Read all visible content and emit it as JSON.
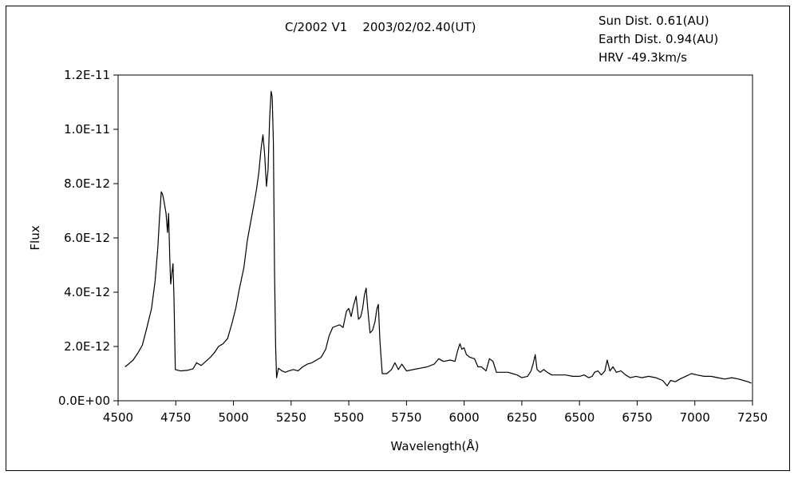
{
  "chart_data": {
    "type": "line",
    "title": "C/2002 V1    2003/02/02.40(UT)",
    "annotations": [
      "Sun Dist. 0.61(AU)",
      "Earth Dist. 0.94(AU)",
      "HRV -49.3km/s"
    ],
    "xlabel": "Wavelength(Å)",
    "ylabel": "Flux",
    "xlim": [
      4500,
      7250
    ],
    "ylim": [
      0,
      1.2e-11
    ],
    "x_ticks": [
      4500,
      4750,
      5000,
      5250,
      5500,
      5750,
      6000,
      6250,
      6500,
      6750,
      7000,
      7250
    ],
    "x_tick_labels": [
      "4500",
      "4750",
      "5000",
      "5250",
      "5500",
      "5750",
      "6000",
      "6250",
      "6500",
      "6750",
      "7000",
      "7250"
    ],
    "y_ticks": [
      0,
      2e-12,
      4e-12,
      6e-12,
      8e-12,
      1e-11,
      1.2e-11
    ],
    "y_tick_labels": [
      "0.0E+00",
      "2.0E-12",
      "4.0E-12",
      "6.0E-12",
      "8.0E-12",
      "1.0E-11",
      "1.2E-11"
    ],
    "grid": false,
    "legend": "none",
    "series": [
      {
        "color": "#000000",
        "points": [
          [
            4530,
            1.25e-12
          ],
          [
            4545,
            1.35e-12
          ],
          [
            4565,
            1.5e-12
          ],
          [
            4585,
            1.75e-12
          ],
          [
            4605,
            2.05e-12
          ],
          [
            4625,
            2.7e-12
          ],
          [
            4645,
            3.4e-12
          ],
          [
            4660,
            4.4e-12
          ],
          [
            4672,
            5.6e-12
          ],
          [
            4680,
            6.8e-12
          ],
          [
            4687,
            7.7e-12
          ],
          [
            4693,
            7.6e-12
          ],
          [
            4700,
            7.3e-12
          ],
          [
            4708,
            6.9e-12
          ],
          [
            4714,
            6.2e-12
          ],
          [
            4719,
            6.9e-12
          ],
          [
            4724,
            5.2e-12
          ],
          [
            4728,
            4.3e-12
          ],
          [
            4733,
            4.7e-12
          ],
          [
            4738,
            5.05e-12
          ],
          [
            4742,
            3.8e-12
          ],
          [
            4748,
            1.15e-12
          ],
          [
            4770,
            1.1e-12
          ],
          [
            4800,
            1.12e-12
          ],
          [
            4825,
            1.18e-12
          ],
          [
            4840,
            1.4e-12
          ],
          [
            4860,
            1.3e-12
          ],
          [
            4880,
            1.45e-12
          ],
          [
            4900,
            1.6e-12
          ],
          [
            4920,
            1.8e-12
          ],
          [
            4935,
            2e-12
          ],
          [
            4955,
            2.1e-12
          ],
          [
            4975,
            2.3e-12
          ],
          [
            4995,
            2.9e-12
          ],
          [
            5010,
            3.4e-12
          ],
          [
            5025,
            4.1e-12
          ],
          [
            5045,
            4.9e-12
          ],
          [
            5060,
            5.9e-12
          ],
          [
            5075,
            6.6e-12
          ],
          [
            5090,
            7.3e-12
          ],
          [
            5100,
            7.8e-12
          ],
          [
            5110,
            8.4e-12
          ],
          [
            5120,
            9.3e-12
          ],
          [
            5128,
            9.8e-12
          ],
          [
            5135,
            9.1e-12
          ],
          [
            5143,
            7.9e-12
          ],
          [
            5150,
            8.5e-12
          ],
          [
            5157,
            1.04e-11
          ],
          [
            5163,
            1.14e-11
          ],
          [
            5168,
            1.12e-11
          ],
          [
            5173,
            9.5e-12
          ],
          [
            5178,
            4.8e-12
          ],
          [
            5183,
            2e-12
          ],
          [
            5187,
            8.5e-13
          ],
          [
            5195,
            1.2e-12
          ],
          [
            5210,
            1.1e-12
          ],
          [
            5225,
            1.05e-12
          ],
          [
            5240,
            1.1e-12
          ],
          [
            5260,
            1.15e-12
          ],
          [
            5280,
            1.1e-12
          ],
          [
            5300,
            1.25e-12
          ],
          [
            5320,
            1.35e-12
          ],
          [
            5340,
            1.4e-12
          ],
          [
            5360,
            1.5e-12
          ],
          [
            5380,
            1.6e-12
          ],
          [
            5400,
            1.9e-12
          ],
          [
            5415,
            2.4e-12
          ],
          [
            5430,
            2.7e-12
          ],
          [
            5445,
            2.75e-12
          ],
          [
            5460,
            2.8e-12
          ],
          [
            5475,
            2.7e-12
          ],
          [
            5490,
            3.3e-12
          ],
          [
            5500,
            3.4e-12
          ],
          [
            5510,
            3.1e-12
          ],
          [
            5520,
            3.5e-12
          ],
          [
            5532,
            3.85e-12
          ],
          [
            5542,
            3e-12
          ],
          [
            5552,
            3.1e-12
          ],
          [
            5560,
            3.4e-12
          ],
          [
            5568,
            3.9e-12
          ],
          [
            5575,
            4.15e-12
          ],
          [
            5582,
            3.4e-12
          ],
          [
            5592,
            2.5e-12
          ],
          [
            5603,
            2.6e-12
          ],
          [
            5613,
            2.9e-12
          ],
          [
            5622,
            3.4e-12
          ],
          [
            5628,
            3.55e-12
          ],
          [
            5635,
            2.2e-12
          ],
          [
            5645,
            1e-12
          ],
          [
            5665,
            1e-12
          ],
          [
            5685,
            1.15e-12
          ],
          [
            5700,
            1.4e-12
          ],
          [
            5715,
            1.15e-12
          ],
          [
            5730,
            1.35e-12
          ],
          [
            5750,
            1.1e-12
          ],
          [
            5780,
            1.15e-12
          ],
          [
            5810,
            1.2e-12
          ],
          [
            5840,
            1.25e-12
          ],
          [
            5870,
            1.35e-12
          ],
          [
            5890,
            1.55e-12
          ],
          [
            5910,
            1.45e-12
          ],
          [
            5940,
            1.5e-12
          ],
          [
            5960,
            1.45e-12
          ],
          [
            5972,
            1.85e-12
          ],
          [
            5982,
            2.1e-12
          ],
          [
            5990,
            1.9e-12
          ],
          [
            6000,
            1.95e-12
          ],
          [
            6010,
            1.7e-12
          ],
          [
            6025,
            1.6e-12
          ],
          [
            6045,
            1.55e-12
          ],
          [
            6060,
            1.25e-12
          ],
          [
            6075,
            1.25e-12
          ],
          [
            6095,
            1.1e-12
          ],
          [
            6110,
            1.55e-12
          ],
          [
            6125,
            1.45e-12
          ],
          [
            6140,
            1.05e-12
          ],
          [
            6165,
            1.05e-12
          ],
          [
            6190,
            1.05e-12
          ],
          [
            6210,
            1e-12
          ],
          [
            6230,
            9.5e-13
          ],
          [
            6250,
            8.5e-13
          ],
          [
            6275,
            9e-13
          ],
          [
            6290,
            1.1e-12
          ],
          [
            6300,
            1.4e-12
          ],
          [
            6308,
            1.7e-12
          ],
          [
            6316,
            1.15e-12
          ],
          [
            6330,
            1.05e-12
          ],
          [
            6345,
            1.15e-12
          ],
          [
            6360,
            1.05e-12
          ],
          [
            6380,
            9.5e-13
          ],
          [
            6410,
            9.5e-13
          ],
          [
            6440,
            9.5e-13
          ],
          [
            6470,
            9e-13
          ],
          [
            6500,
            9e-13
          ],
          [
            6520,
            9.5e-13
          ],
          [
            6540,
            8.5e-13
          ],
          [
            6555,
            9e-13
          ],
          [
            6565,
            1.05e-12
          ],
          [
            6580,
            1.1e-12
          ],
          [
            6595,
            9.5e-13
          ],
          [
            6610,
            1.1e-12
          ],
          [
            6620,
            1.5e-12
          ],
          [
            6632,
            1.1e-12
          ],
          [
            6645,
            1.25e-12
          ],
          [
            6660,
            1.05e-12
          ],
          [
            6680,
            1.1e-12
          ],
          [
            6700,
            9.5e-13
          ],
          [
            6720,
            8.5e-13
          ],
          [
            6745,
            9e-13
          ],
          [
            6770,
            8.5e-13
          ],
          [
            6800,
            9e-13
          ],
          [
            6830,
            8.5e-13
          ],
          [
            6860,
            7.5e-13
          ],
          [
            6880,
            5.5e-13
          ],
          [
            6895,
            7.5e-13
          ],
          [
            6915,
            7e-13
          ],
          [
            6935,
            8e-13
          ],
          [
            6960,
            9e-13
          ],
          [
            6985,
            1e-12
          ],
          [
            7010,
            9.5e-13
          ],
          [
            7040,
            9e-13
          ],
          [
            7070,
            9e-13
          ],
          [
            7100,
            8.5e-13
          ],
          [
            7130,
            8e-13
          ],
          [
            7160,
            8.5e-13
          ],
          [
            7190,
            8e-13
          ],
          [
            7210,
            7.5e-13
          ],
          [
            7230,
            7e-13
          ],
          [
            7245,
            6.5e-13
          ]
        ]
      }
    ]
  }
}
